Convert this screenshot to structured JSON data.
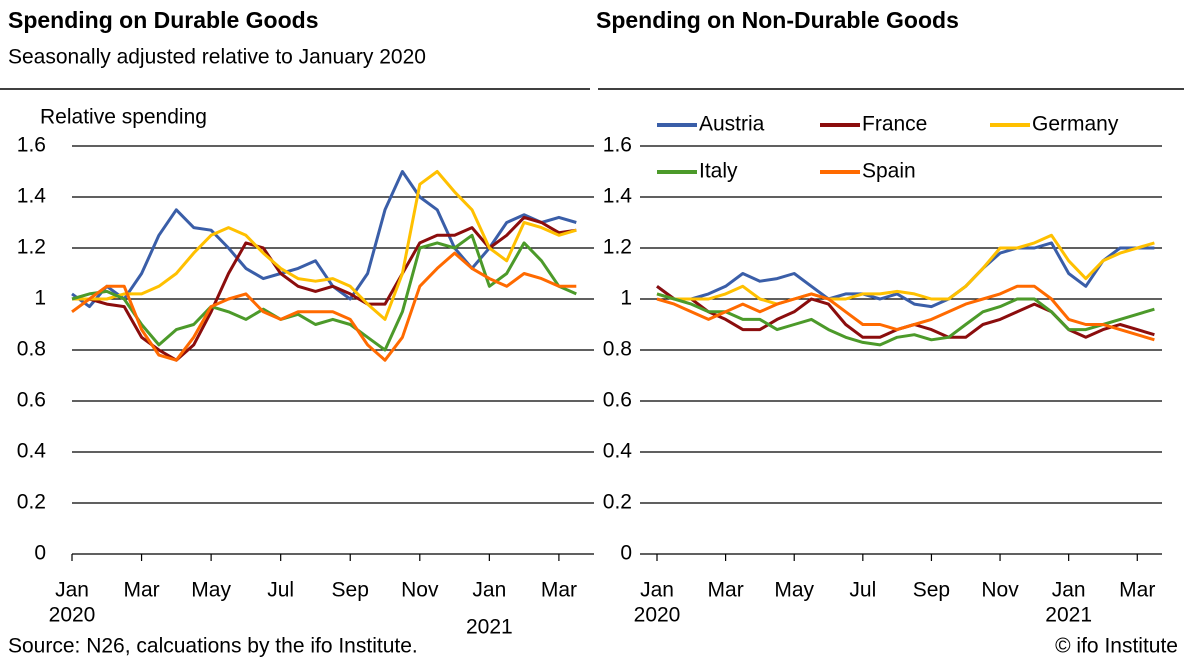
{
  "chart_data": [
    {
      "type": "line",
      "title": "Spending on Durable Goods",
      "subtitle": "Seasonally adjusted relative to January 2020",
      "ylabel": "Relative spending",
      "x": [
        0,
        0.5,
        1,
        1.5,
        2,
        2.5,
        3,
        3.5,
        4,
        4.5,
        5,
        5.5,
        6,
        6.5,
        7,
        7.5,
        8,
        8.5,
        9,
        9.5,
        10,
        10.5,
        11,
        11.5,
        12,
        12.5,
        13,
        13.5,
        14,
        14.5
      ],
      "xlim": [
        0,
        14.75
      ],
      "xticks": [
        {
          "value": 0,
          "label": "Jan"
        },
        {
          "value": 2,
          "label": "Mar"
        },
        {
          "value": 4,
          "label": "May"
        },
        {
          "value": 6,
          "label": "Jul"
        },
        {
          "value": 8,
          "label": "Sep"
        },
        {
          "value": 10,
          "label": "Nov"
        },
        {
          "value": 12,
          "label": "Jan"
        },
        {
          "value": 14,
          "label": "Mar"
        }
      ],
      "year_labels": [
        {
          "value": 0,
          "label": "2020"
        },
        {
          "value": 12,
          "label": "2021"
        }
      ],
      "ylim": [
        0,
        1.6
      ],
      "yticks": [
        0,
        0.2,
        0.4,
        0.6,
        0.8,
        1,
        1.2,
        1.4,
        1.6
      ],
      "grid": true,
      "legend": false,
      "series": [
        {
          "color": "#3a5ea8",
          "values": [
            1.02,
            0.97,
            1.05,
            1.0,
            1.1,
            1.25,
            1.35,
            1.28,
            1.27,
            1.2,
            1.12,
            1.08,
            1.1,
            1.12,
            1.15,
            1.05,
            1.0,
            1.1,
            1.35,
            1.5,
            1.4,
            1.35,
            1.2,
            1.12,
            1.2,
            1.3,
            1.33,
            1.3,
            1.32,
            1.3
          ]
        },
        {
          "color": "#8b0d0d",
          "values": [
            1.0,
            1.0,
            0.98,
            0.97,
            0.85,
            0.8,
            0.76,
            0.82,
            0.95,
            1.1,
            1.22,
            1.2,
            1.1,
            1.05,
            1.03,
            1.05,
            1.02,
            0.98,
            0.98,
            1.1,
            1.22,
            1.25,
            1.25,
            1.28,
            1.2,
            1.25,
            1.32,
            1.3,
            1.26,
            1.27
          ]
        },
        {
          "color": "#ffc000",
          "values": [
            1.0,
            1.0,
            1.0,
            1.02,
            1.02,
            1.05,
            1.1,
            1.18,
            1.25,
            1.28,
            1.25,
            1.18,
            1.12,
            1.08,
            1.07,
            1.08,
            1.05,
            0.98,
            0.92,
            1.1,
            1.45,
            1.5,
            1.42,
            1.35,
            1.2,
            1.15,
            1.3,
            1.28,
            1.25,
            1.27
          ]
        },
        {
          "color": "#4c9a2a",
          "values": [
            1.0,
            1.02,
            1.03,
            1.0,
            0.9,
            0.82,
            0.88,
            0.9,
            0.97,
            0.95,
            0.92,
            0.96,
            0.92,
            0.94,
            0.9,
            0.92,
            0.9,
            0.85,
            0.8,
            0.95,
            1.2,
            1.22,
            1.2,
            1.25,
            1.05,
            1.1,
            1.22,
            1.15,
            1.05,
            1.02
          ]
        },
        {
          "color": "#ff6a00",
          "values": [
            0.95,
            1.0,
            1.05,
            1.05,
            0.88,
            0.78,
            0.76,
            0.85,
            0.97,
            1.0,
            1.02,
            0.95,
            0.92,
            0.95,
            0.95,
            0.95,
            0.92,
            0.82,
            0.76,
            0.85,
            1.05,
            1.12,
            1.18,
            1.12,
            1.08,
            1.05,
            1.1,
            1.08,
            1.05,
            1.05
          ]
        }
      ]
    },
    {
      "type": "line",
      "title": "Spending on Non-Durable Goods",
      "x": [
        0,
        0.5,
        1,
        1.5,
        2,
        2.5,
        3,
        3.5,
        4,
        4.5,
        5,
        5.5,
        6,
        6.5,
        7,
        7.5,
        8,
        8.5,
        9,
        9.5,
        10,
        10.5,
        11,
        11.5,
        12,
        12.5,
        13,
        13.5,
        14,
        14.5
      ],
      "xlim": [
        0,
        14.75
      ],
      "xticks": [
        {
          "value": 0,
          "label": "Jan"
        },
        {
          "value": 2,
          "label": "Mar"
        },
        {
          "value": 4,
          "label": "May"
        },
        {
          "value": 6,
          "label": "Jul"
        },
        {
          "value": 8,
          "label": "Sep"
        },
        {
          "value": 10,
          "label": "Nov"
        },
        {
          "value": 12,
          "label": "Jan"
        },
        {
          "value": 14,
          "label": "Mar"
        }
      ],
      "year_labels": [
        {
          "value": 0,
          "label": "2020"
        },
        {
          "value": 12,
          "label": "2021"
        }
      ],
      "ylim": [
        0,
        1.6
      ],
      "yticks": [
        0,
        0.2,
        0.4,
        0.6,
        0.8,
        1,
        1.2,
        1.4,
        1.6
      ],
      "grid": true,
      "legend": true,
      "series": [
        {
          "name": "Austria",
          "color": "#3a5ea8",
          "values": [
            1.05,
            1.0,
            1.0,
            1.02,
            1.05,
            1.1,
            1.07,
            1.08,
            1.1,
            1.05,
            1.0,
            1.02,
            1.02,
            1.0,
            1.02,
            0.98,
            0.97,
            1.0,
            1.05,
            1.12,
            1.18,
            1.2,
            1.2,
            1.22,
            1.1,
            1.05,
            1.15,
            1.2,
            1.2,
            1.2
          ]
        },
        {
          "name": "France",
          "color": "#8b0d0d",
          "values": [
            1.05,
            1.0,
            1.0,
            0.95,
            0.92,
            0.88,
            0.88,
            0.92,
            0.95,
            1.0,
            0.98,
            0.9,
            0.85,
            0.85,
            0.88,
            0.9,
            0.88,
            0.85,
            0.85,
            0.9,
            0.92,
            0.95,
            0.98,
            0.95,
            0.88,
            0.85,
            0.88,
            0.9,
            0.88,
            0.86
          ]
        },
        {
          "name": "Germany",
          "color": "#ffc000",
          "values": [
            1.02,
            1.0,
            1.0,
            1.0,
            1.02,
            1.05,
            1.0,
            0.98,
            1.0,
            1.02,
            1.0,
            1.0,
            1.02,
            1.02,
            1.03,
            1.02,
            1.0,
            1.0,
            1.05,
            1.12,
            1.2,
            1.2,
            1.22,
            1.25,
            1.15,
            1.08,
            1.15,
            1.18,
            1.2,
            1.22
          ]
        },
        {
          "name": "Italy",
          "color": "#4c9a2a",
          "values": [
            1.02,
            1.0,
            0.98,
            0.95,
            0.95,
            0.92,
            0.92,
            0.88,
            0.9,
            0.92,
            0.88,
            0.85,
            0.83,
            0.82,
            0.85,
            0.86,
            0.84,
            0.85,
            0.9,
            0.95,
            0.97,
            1.0,
            1.0,
            0.95,
            0.88,
            0.88,
            0.9,
            0.92,
            0.94,
            0.96
          ]
        },
        {
          "name": "Spain",
          "color": "#ff6a00",
          "values": [
            1.0,
            0.98,
            0.95,
            0.92,
            0.95,
            0.98,
            0.95,
            0.98,
            1.0,
            1.02,
            1.0,
            0.95,
            0.9,
            0.9,
            0.88,
            0.9,
            0.92,
            0.95,
            0.98,
            1.0,
            1.02,
            1.05,
            1.05,
            1.0,
            0.92,
            0.9,
            0.9,
            0.88,
            0.86,
            0.84
          ]
        }
      ]
    }
  ],
  "source": "Source: N26, calcuations by the ifo Institute.",
  "credit": "© ifo Institute"
}
